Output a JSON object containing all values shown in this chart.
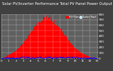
{
  "title": "Solar PV/Inverter Performance Total PV Panel Power Output & Solar Radiation",
  "bg_color": "#404040",
  "plot_bg_color": "#606060",
  "bar_color": "#ff0000",
  "dot_color": "#0000ff",
  "dot_color2": "#00aaff",
  "grid_color": "#ffffff",
  "ymax": 800,
  "ymin": 0,
  "n_bars": 200,
  "legend_pv_color": "#ff0000",
  "legend_solar_color": "#00ccff",
  "title_fontsize": 3.8,
  "tick_fontsize": 3.0,
  "yticks": [
    0,
    100,
    200,
    300,
    400,
    500,
    600,
    700,
    800
  ]
}
